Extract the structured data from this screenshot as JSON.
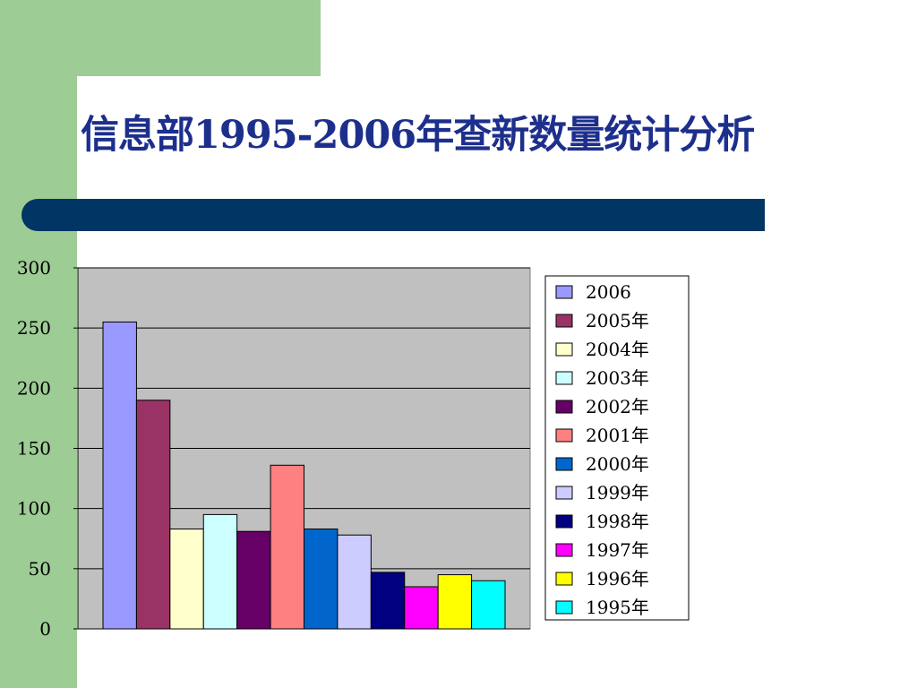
{
  "slide": {
    "title": "信息部1995-2006年查新数量统计分析"
  },
  "colors": {
    "sidebar": "#9dcc95",
    "title_text": "#1d2f8c",
    "title_bar": "#003564",
    "plot_background": "#c0c0c0"
  },
  "chart_data": {
    "type": "bar",
    "title": "",
    "xlabel": "",
    "ylabel": "",
    "ylim": [
      0,
      300
    ],
    "yticks": [
      0,
      50,
      100,
      150,
      200,
      250,
      300
    ],
    "grid": true,
    "legend_position": "right",
    "series": [
      {
        "name": "2006",
        "value": 255,
        "color": "#9999ff"
      },
      {
        "name": "2005年",
        "value": 190,
        "color": "#993366"
      },
      {
        "name": "2004年",
        "value": 83,
        "color": "#ffffcc"
      },
      {
        "name": "2003年",
        "value": 95,
        "color": "#ccffff"
      },
      {
        "name": "2002年",
        "value": 81,
        "color": "#660066"
      },
      {
        "name": "2001年",
        "value": 136,
        "color": "#ff8080"
      },
      {
        "name": "2000年",
        "value": 83,
        "color": "#0066cc"
      },
      {
        "name": "1999年",
        "value": 78,
        "color": "#ccccff"
      },
      {
        "name": "1998年",
        "value": 47,
        "color": "#000080"
      },
      {
        "name": "1997年",
        "value": 35,
        "color": "#ff00ff"
      },
      {
        "name": "1996年",
        "value": 45,
        "color": "#ffff00"
      },
      {
        "name": "1995年",
        "value": 40,
        "color": "#00ffff"
      }
    ]
  }
}
